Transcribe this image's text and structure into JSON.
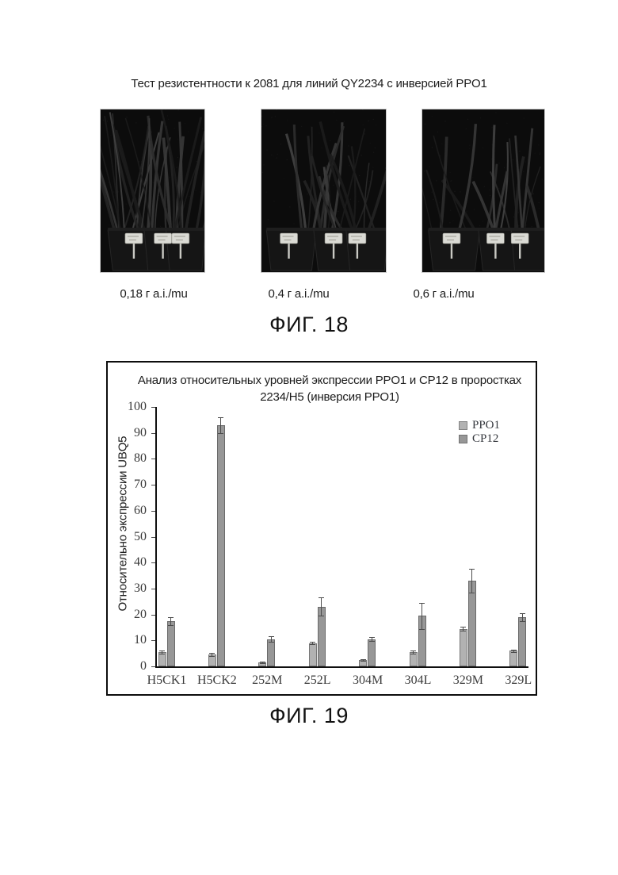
{
  "document": {
    "fig18": {
      "title": "Тест резистентности к 2081 для линий QY2234 с инверсией PPO1",
      "dose_labels": [
        "0,18 г a.i./mu",
        "0,4 г a.i./mu",
        "0,6 г a.i./mu"
      ],
      "caption": "ФИГ. 18"
    },
    "fig19": {
      "caption": "ФИГ. 19"
    }
  },
  "chart_data": {
    "type": "bar",
    "title": "Анализ относительных уровней экспрессии PPO1 и CP12 в проростках 2234/H5 (инверсия PPO1)",
    "title_lines": [
      "Анализ относительных уровней экспрессии PPO1 и CP12 в проростках",
      "2234/H5 (инверсия PPO1)"
    ],
    "ylabel": "Относительно экспрессии UBQ5",
    "xlabel": "",
    "ylim": [
      0,
      100
    ],
    "yticks": [
      0,
      10,
      20,
      30,
      40,
      50,
      60,
      70,
      80,
      90,
      100
    ],
    "categories": [
      "H5CK1",
      "H5CK2",
      "252M",
      "252L",
      "304M",
      "304L",
      "329M",
      "329L"
    ],
    "series": [
      {
        "name": "PPO1",
        "color": "#b2b2b2",
        "values": [
          5.5,
          4.5,
          1.5,
          9,
          2.5,
          5.5,
          14.5,
          6
        ],
        "errors": [
          0.5,
          0.6,
          0.3,
          0.5,
          0.3,
          0.5,
          0.8,
          0.5
        ]
      },
      {
        "name": "CP12",
        "color": "#979797",
        "values": [
          17.5,
          93,
          10.5,
          23,
          10.5,
          19.5,
          33,
          19
        ],
        "errors": [
          1.5,
          3,
          1,
          3.5,
          0.7,
          5,
          4.5,
          1.5
        ]
      }
    ],
    "legend_position": "top-right",
    "grid": false
  }
}
